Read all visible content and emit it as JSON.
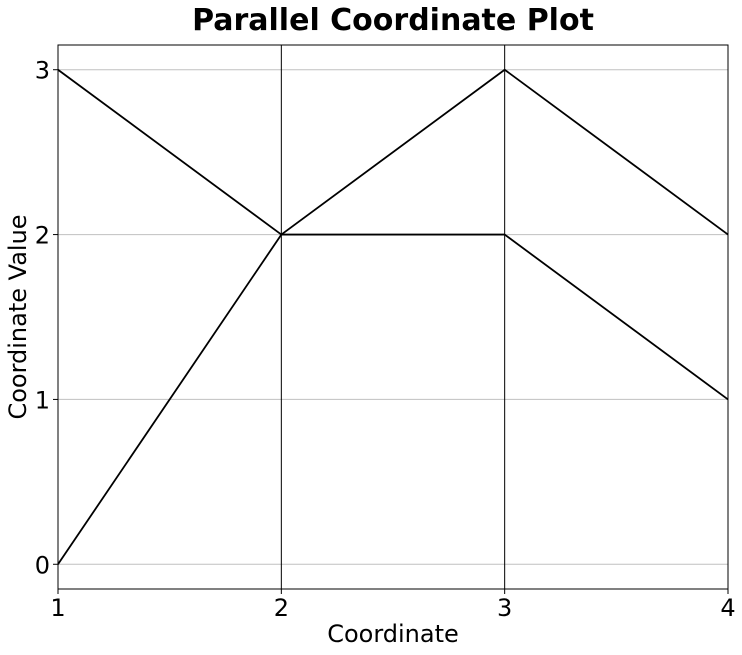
{
  "chart_data": {
    "type": "line",
    "subtype": "parallel-coordinates",
    "title": "Parallel Coordinate Plot",
    "xlabel": "Coordinate",
    "ylabel": "Coordinate Value",
    "x": [
      1,
      2,
      3,
      4
    ],
    "x_tick_labels": [
      "1",
      "2",
      "3",
      "4"
    ],
    "y_ticks": [
      0,
      1,
      2,
      3
    ],
    "y_tick_labels": [
      "0",
      "1",
      "2",
      "3"
    ],
    "xlim": [
      1,
      4
    ],
    "ylim": [
      -0.15,
      3.15
    ],
    "grid": true,
    "line_color": "#000000",
    "grid_color": "#c0c0c0",
    "series": [
      {
        "values": [
          3,
          2,
          3,
          2
        ]
      },
      {
        "values": [
          0,
          2,
          2,
          1
        ]
      }
    ]
  }
}
